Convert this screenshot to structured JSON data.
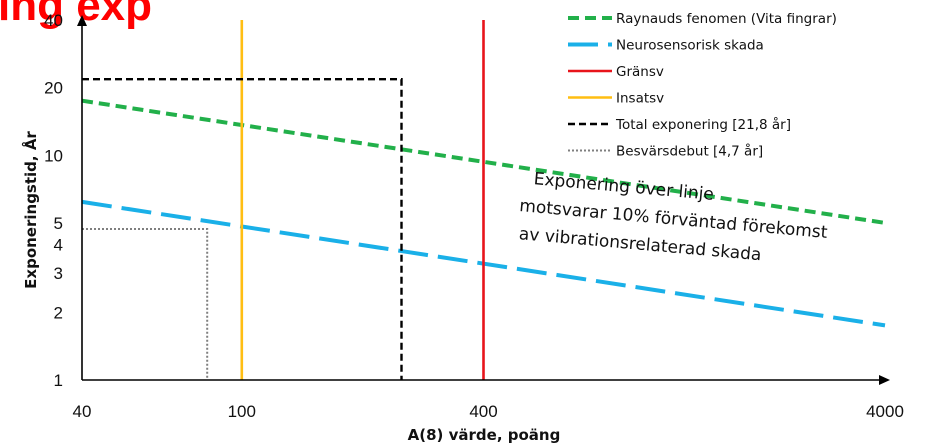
{
  "chart_data": {
    "type": "line",
    "title_fragment": "ing exp",
    "xlabel": "A(8) värde, poäng",
    "ylabel": "Exponeringstid, År",
    "x_scale": "log",
    "y_scale": "log",
    "xlim": [
      40,
      4000
    ],
    "ylim": [
      1,
      40
    ],
    "xticks": [
      {
        "value": 40,
        "label": "40"
      },
      {
        "value": 100,
        "label": "100"
      },
      {
        "value": 400,
        "label": "400"
      },
      {
        "value": 4000,
        "label": "4000"
      }
    ],
    "yticks": [
      {
        "value": 1,
        "label": "1"
      },
      {
        "value": 2,
        "label": "2"
      },
      {
        "value": 3,
        "label": "3"
      },
      {
        "value": 4,
        "label": "4"
      },
      {
        "value": 5,
        "label": "5"
      },
      {
        "value": 10,
        "label": "10"
      },
      {
        "value": 20,
        "label": "20"
      },
      {
        "value": 40,
        "label": "40"
      }
    ],
    "grid": false,
    "legend_position": "top-right",
    "series": [
      {
        "name": "Raynauds fenomen (Vita fingrar)",
        "color": "#22b04a",
        "style": "dash",
        "points": [
          [
            40,
            17.5
          ],
          [
            4000,
            5.0
          ]
        ]
      },
      {
        "name": "Neurosensorisk skada",
        "color": "#1ab0e8",
        "style": "longdash",
        "points": [
          [
            40,
            6.2
          ],
          [
            4000,
            1.75
          ]
        ]
      },
      {
        "name": "Gränsv",
        "color": "#e8141b",
        "style": "solid",
        "points": [
          [
            400,
            1
          ],
          [
            400,
            40
          ]
        ]
      },
      {
        "name": "Insatsv",
        "color": "#ffbe12",
        "style": "solid",
        "points": [
          [
            100,
            1
          ],
          [
            100,
            40
          ]
        ]
      },
      {
        "name": "Total exponering [21,8 år]",
        "color": "#000000",
        "style": "shortdash",
        "points": [
          [
            40,
            21.8
          ],
          [
            250,
            21.8
          ],
          [
            250,
            1
          ]
        ]
      },
      {
        "name": "Besvärsdebut [4,7 år]",
        "color": "#7f7f7f",
        "style": "dot",
        "points": [
          [
            40,
            4.7
          ],
          [
            82,
            4.7
          ],
          [
            82,
            1
          ]
        ]
      }
    ],
    "annotation": {
      "lines": [
        "Exponering över linje",
        "motsvarar 10% förväntad förekomst",
        "av vibrationsrelaterad skada"
      ],
      "rotation_deg": 5
    }
  }
}
